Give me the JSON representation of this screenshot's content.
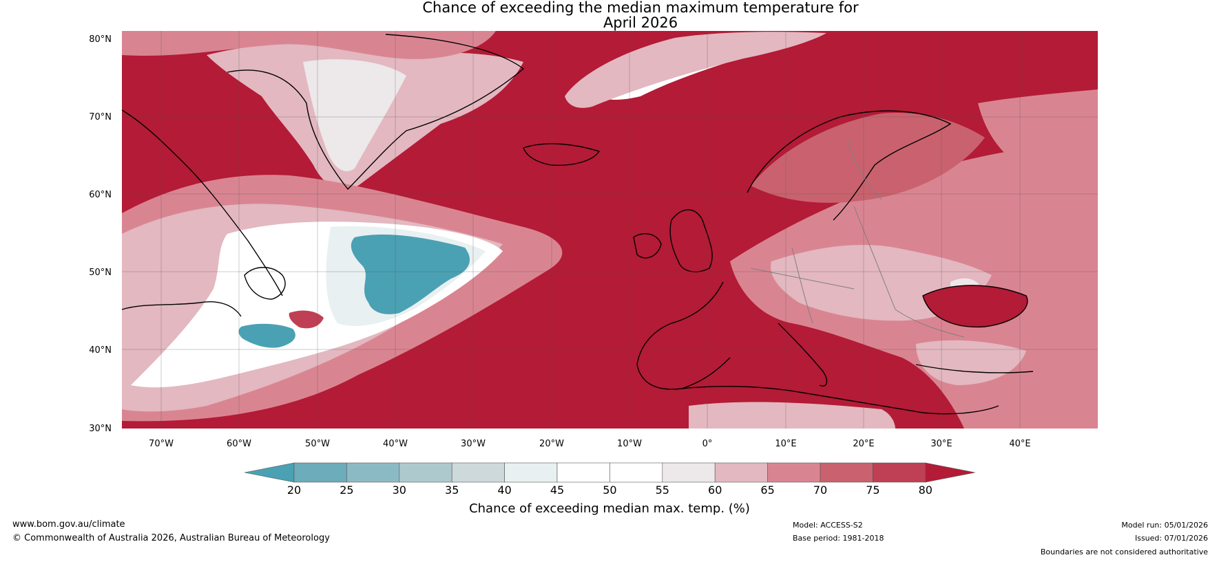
{
  "title": {
    "line1": "Chance of exceeding the median maximum temperature for",
    "line2": "April 2026"
  },
  "map": {
    "lat_labels": [
      "80°N",
      "70°N",
      "60°N",
      "50°N",
      "40°N",
      "30°N"
    ],
    "lon_labels": [
      "70°W",
      "60°W",
      "50°W",
      "40°W",
      "30°W",
      "20°W",
      "10°W",
      "0°",
      "10°E",
      "20°E",
      "30°E",
      "40°E"
    ],
    "background_color": "#b31b36",
    "land_border_color": "#000000"
  },
  "colorbar": {
    "ticks": [
      "20",
      "25",
      "30",
      "35",
      "40",
      "45",
      "50",
      "55",
      "60",
      "65",
      "70",
      "75",
      "80"
    ],
    "colors": [
      "#4aa1b3",
      "#6cacbb",
      "#8cbac4",
      "#adc9cd",
      "#ced9dc",
      "#e9f0f1",
      "#ffffff",
      "#ffffff",
      "#ede8ea",
      "#e3b8c0",
      "#d98591",
      "#c9626e",
      "#bf3f54",
      "#b31b36"
    ],
    "label": "Chance of exceeding median max. temp. (%)"
  },
  "footer": {
    "website": "www.bom.gov.au/climate",
    "copyright": "© Commonwealth of Australia 2026, Australian Bureau of Meteorology",
    "model": "Model: ACCESS-S2",
    "base_period": "Base period: 1981-2018",
    "model_run": "Model run: 05/01/2026",
    "issued": "Issued: 07/01/2026",
    "disclaimer": "Boundaries are not considered authoritative"
  }
}
